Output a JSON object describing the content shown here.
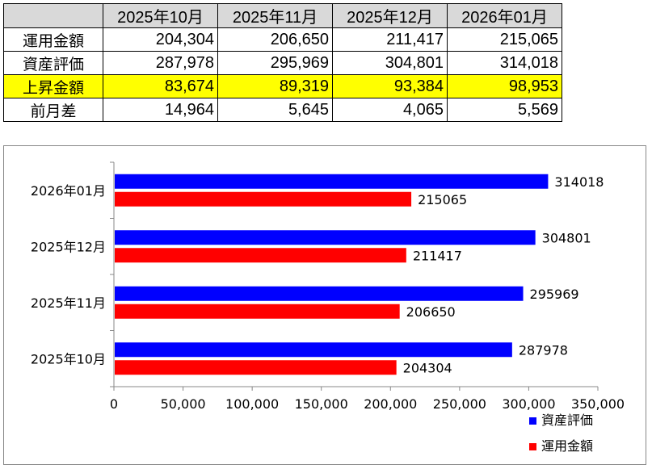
{
  "table": {
    "columns": [
      "2025年10月",
      "2025年11月",
      "2025年12月",
      "2026年01月"
    ],
    "rows": [
      {
        "label": "運用金額",
        "values": [
          "204,304",
          "206,650",
          "211,417",
          "215,065"
        ],
        "highlight": false
      },
      {
        "label": "資産評価",
        "values": [
          "287,978",
          "295,969",
          "304,801",
          "314,018"
        ],
        "highlight": false
      },
      {
        "label": "上昇金額",
        "values": [
          "83,674",
          "89,319",
          "93,384",
          "98,953"
        ],
        "highlight": true
      },
      {
        "label": "前月差",
        "values": [
          "14,964",
          "5,645",
          "4,065",
          "5,569"
        ],
        "highlight": false
      }
    ],
    "highlight_color": "#ffff00",
    "header_color": "#d9d9d9"
  },
  "chart_data": {
    "type": "bar",
    "orientation": "horizontal",
    "categories": [
      "2025年10月",
      "2025年11月",
      "2025年12月",
      "2026年01月"
    ],
    "series": [
      {
        "name": "資産評価",
        "values": [
          287978,
          295969,
          304801,
          314018
        ],
        "color": "#0000ff"
      },
      {
        "name": "運用金額",
        "values": [
          204304,
          206650,
          211417,
          215065
        ],
        "color": "#ff0000"
      }
    ],
    "xlim": [
      0,
      350000
    ],
    "x_ticks": [
      0,
      50000,
      100000,
      150000,
      200000,
      250000,
      300000,
      350000
    ],
    "x_tick_labels": [
      "0",
      "50,000",
      "100,000",
      "150,000",
      "200,000",
      "250,000",
      "300,000",
      "350,000"
    ],
    "data_labels": true,
    "grid": false,
    "legend": "bottom-right",
    "title": "",
    "xlabel": "",
    "ylabel": ""
  }
}
